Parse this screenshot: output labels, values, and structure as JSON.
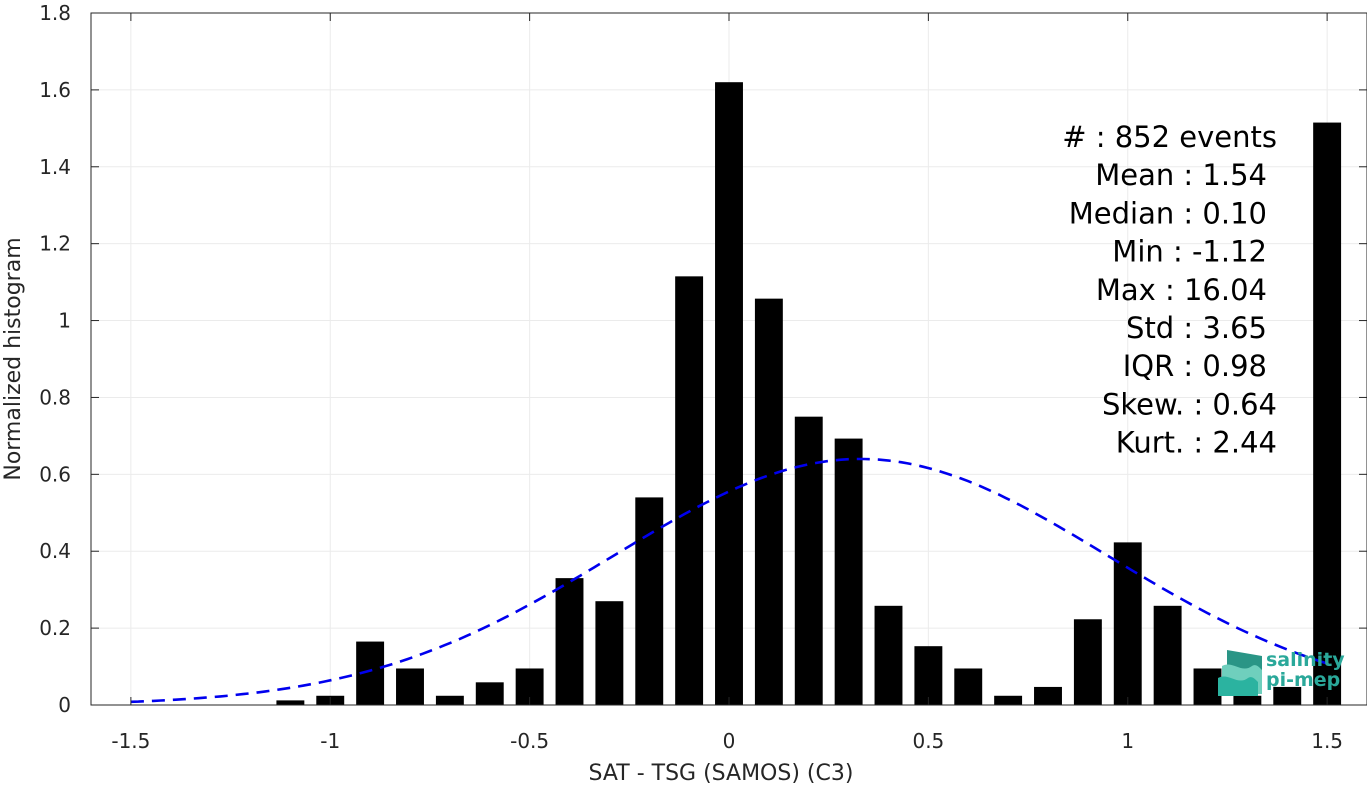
{
  "chart_data": {
    "type": "bar",
    "xlabel": "SAT - TSG (SAMOS) (C3)",
    "ylabel": "Normalized histogram",
    "xlim": [
      -1.6,
      1.6
    ],
    "ylim": [
      0,
      1.8
    ],
    "xticks": [
      -1.5,
      -1,
      -0.5,
      0,
      0.5,
      1,
      1.5
    ],
    "xtick_labels": [
      "-1.5",
      "-1",
      "-0.5",
      "0",
      "0.5",
      "1",
      "1.5"
    ],
    "yticks": [
      0,
      0.2,
      0.4,
      0.6,
      0.8,
      1,
      1.2,
      1.4,
      1.6,
      1.8
    ],
    "ytick_labels": [
      "0",
      "0.2",
      "0.4",
      "0.6",
      "0.8",
      "1",
      "1.2",
      "1.4",
      "1.6",
      "1.8"
    ],
    "grid": true,
    "bar_width": 0.07,
    "bar_color": "#000000",
    "bars": {
      "x": [
        -1.1,
        -1.0,
        -0.9,
        -0.8,
        -0.7,
        -0.6,
        -0.5,
        -0.4,
        -0.3,
        -0.2,
        -0.1,
        0.0,
        0.1,
        0.2,
        0.3,
        0.4,
        0.5,
        0.6,
        0.7,
        0.8,
        0.9,
        1.0,
        1.1,
        1.2,
        1.3,
        1.4,
        1.5
      ],
      "values": [
        0.012,
        0.024,
        0.165,
        0.095,
        0.024,
        0.059,
        0.095,
        0.33,
        0.27,
        0.54,
        1.115,
        1.62,
        1.057,
        0.75,
        0.693,
        0.258,
        0.153,
        0.095,
        0.024,
        0.047,
        0.223,
        0.423,
        0.258,
        0.095,
        0.024,
        0.047,
        1.515
      ]
    },
    "fit_curve": {
      "style": "dashed",
      "color": "#0000ee",
      "mean": 0.33,
      "std": 0.62,
      "peak": 0.64,
      "x_range": [
        -1.5,
        1.5
      ]
    },
    "stats": [
      "#  : 852 events",
      "Mean : 1.54",
      "Median : 0.10",
      "Min : -1.12",
      "Max : 16.04",
      "Std : 3.65",
      "IQR : 0.98",
      "Skew. : 0.64",
      "Kurt. : 2.44"
    ]
  },
  "logo": {
    "line1": "salinity",
    "line2": "pi-mep",
    "color": "#2aa89a"
  }
}
